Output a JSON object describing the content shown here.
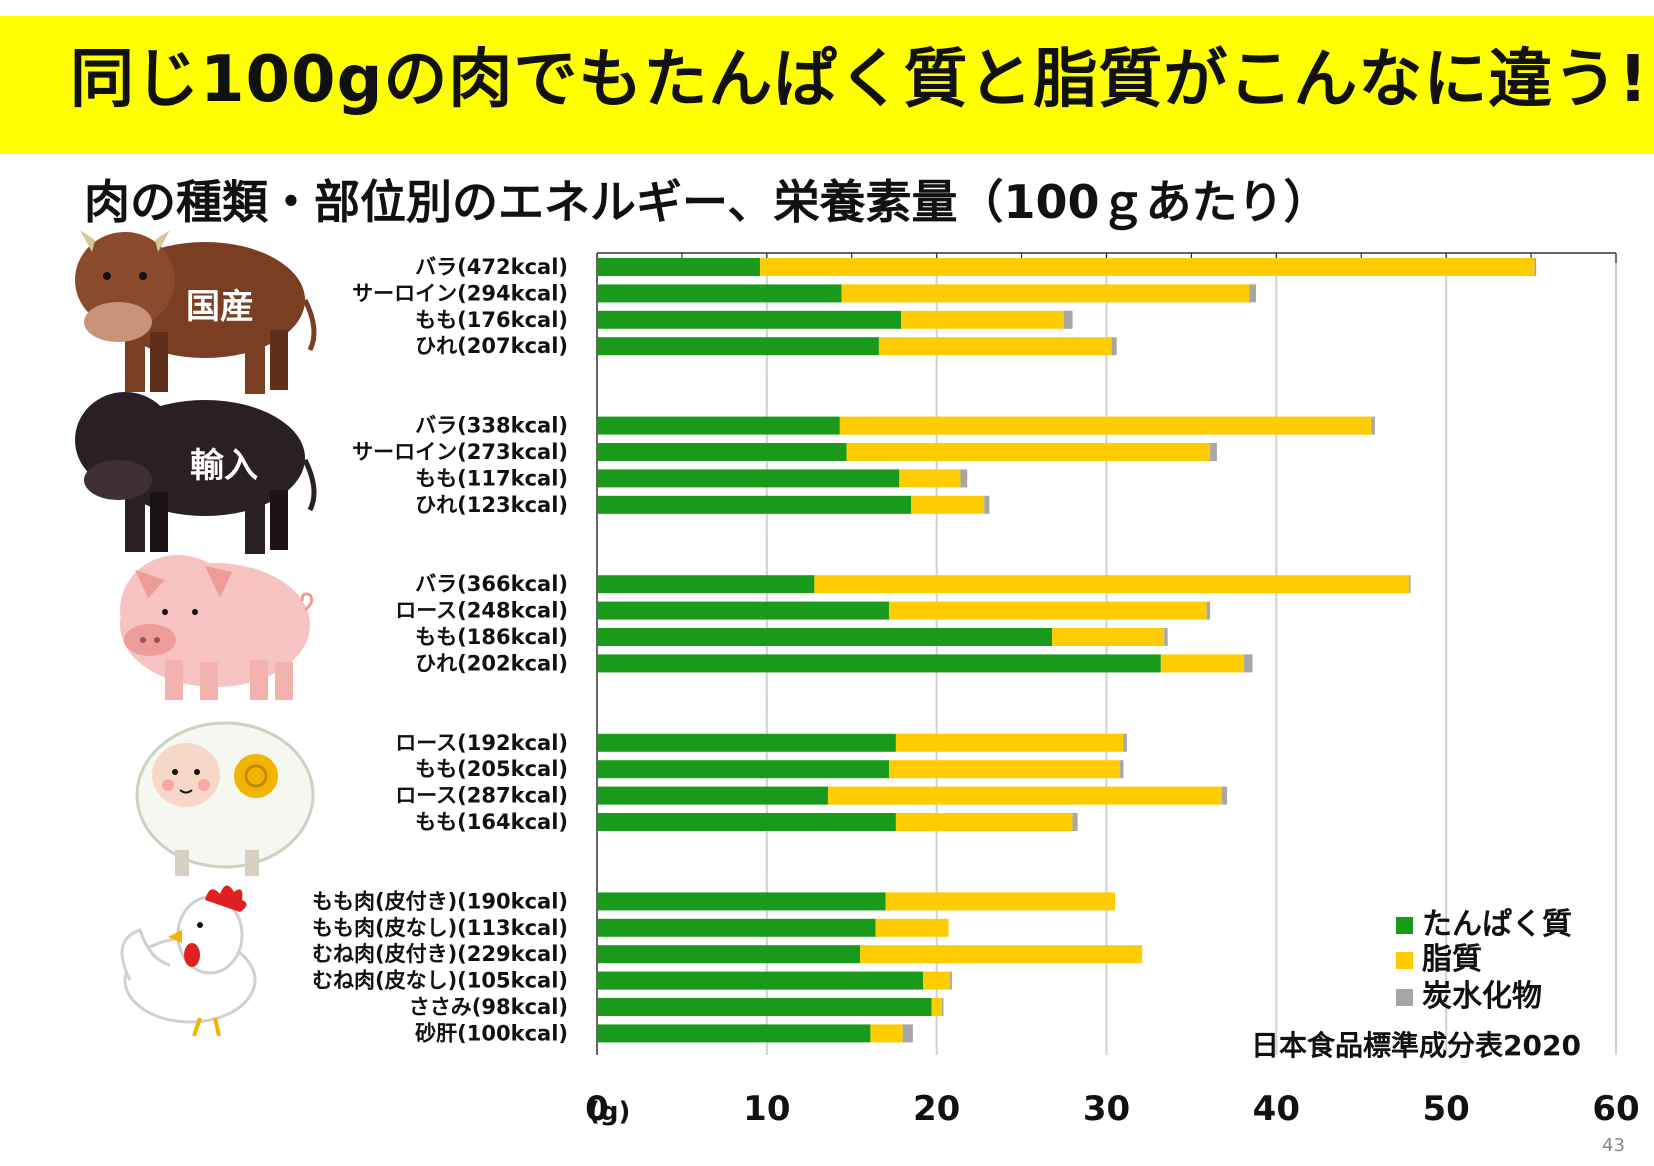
{
  "title": "同じ100gの肉でもたんぱく質と脂質がこんなに違う!!",
  "subtitle": "肉の種類・部位別のエネルギー、栄養素量（100ｇあたり）",
  "page_number": "43",
  "source": "日本食品標準成分表2020",
  "unit_label": "(g)",
  "groups": [
    {
      "label": "国産",
      "icon": "cow-icon"
    },
    {
      "label": "輸入",
      "icon": "black-cow-icon"
    },
    {
      "label": "",
      "icon": "pig-icon"
    },
    {
      "label": "",
      "icon": "sheep-icon"
    },
    {
      "label": "",
      "icon": "chicken-icon"
    }
  ],
  "colors": {
    "protein": "#1a9a1a",
    "fat": "#ffcc00",
    "carb": "#a6a6a6",
    "banner": "#ffff00"
  },
  "chart_data": {
    "type": "bar",
    "orientation": "horizontal",
    "stacked": true,
    "title": "肉の種類・部位別のエネルギー、栄養素量（100ｇあたり）",
    "xlabel": "(g)",
    "xlim": [
      0,
      60
    ],
    "xticks": [
      "0",
      "10",
      "20",
      "30",
      "40",
      "50",
      "60"
    ],
    "grid": true,
    "legend_position": "bottom-right",
    "categories": [
      "バラ(472kcal)",
      "サーロイン(294kcal)",
      "もも(176kcal)",
      "ひれ(207kcal)",
      "バラ(338kcal)",
      "サーロイン(273kcal)",
      "もも(117kcal)",
      "ひれ(123kcal)",
      "バラ(366kcal)",
      "ロース(248kcal)",
      "もも(186kcal)",
      "ひれ(202kcal)",
      "ロース(192kcal)",
      "もも(205kcal)",
      "ロース(287kcal)",
      "もも(164kcal)",
      "もも肉(皮付き)(190kcal)",
      "もも肉(皮なし)(113kcal)",
      "むね肉(皮付き)(229kcal)",
      "むね肉(皮なし)(105kcal)",
      "ささみ(98kcal)",
      "砂肝(100kcal)"
    ],
    "category_group": [
      0,
      0,
      0,
      0,
      1,
      1,
      1,
      1,
      2,
      2,
      2,
      2,
      3,
      3,
      3,
      3,
      4,
      4,
      4,
      4,
      4,
      4
    ],
    "series": [
      {
        "name": "たんぱく質",
        "color": "#1a9a1a",
        "values": [
          9.6,
          14.4,
          17.9,
          16.6,
          14.3,
          14.7,
          17.8,
          18.5,
          12.8,
          17.2,
          26.8,
          33.2,
          17.6,
          17.2,
          13.6,
          17.6,
          17.0,
          16.4,
          15.5,
          19.2,
          19.7,
          16.1
        ]
      },
      {
        "name": "脂質",
        "color": "#ffcc00",
        "values": [
          45.6,
          24.0,
          9.6,
          13.7,
          31.3,
          21.4,
          3.6,
          4.3,
          35.0,
          18.7,
          6.6,
          4.9,
          13.4,
          13.6,
          23.2,
          10.4,
          13.5,
          4.3,
          16.6,
          1.6,
          0.6,
          1.9
        ]
      },
      {
        "name": "炭水化物",
        "color": "#a6a6a6",
        "values": [
          0.1,
          0.4,
          0.5,
          0.3,
          0.2,
          0.4,
          0.4,
          0.3,
          0.1,
          0.2,
          0.2,
          0.5,
          0.2,
          0.2,
          0.3,
          0.3,
          0.0,
          0.0,
          0.0,
          0.1,
          0.1,
          0.6
        ]
      }
    ]
  }
}
